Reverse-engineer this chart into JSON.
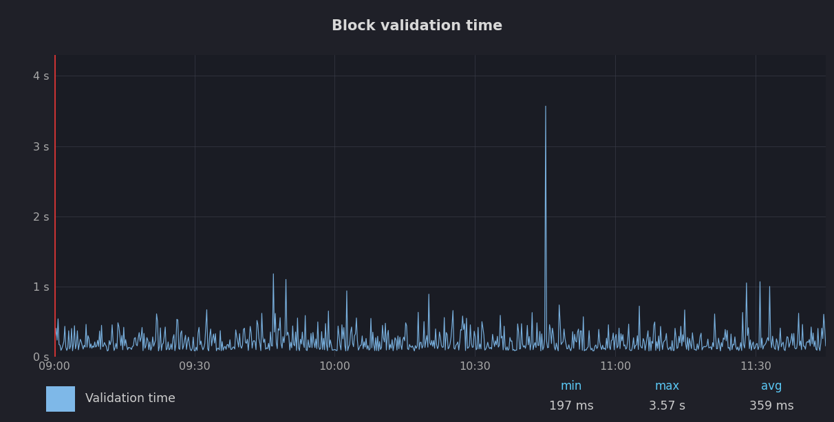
{
  "title": "Block validation time",
  "background_color": "#1f2028",
  "plot_bg_color": "#1a1c24",
  "grid_color": "#3a3d4a",
  "line_color": "#7eb8e8",
  "red_line_color": "#cc3333",
  "title_color": "#d8d8d8",
  "tick_color": "#aaaaaa",
  "legend_label": "Validation time",
  "legend_label_color": "#cccccc",
  "stat_label_color": "#5bc8f5",
  "stat_value_color": "#cccccc",
  "min_label": "min",
  "max_label": "max",
  "avg_label": "avg",
  "min_value": "197 ms",
  "max_value": "3.57 s",
  "avg_value": "359 ms",
  "x_ticks": [
    "09:00",
    "09:30",
    "10:00",
    "10:30",
    "11:00",
    "11:30"
  ],
  "x_tick_positions": [
    0,
    30,
    60,
    90,
    120,
    150
  ],
  "y_ticks": [
    0,
    1,
    2,
    3,
    4
  ],
  "y_tick_labels": [
    "0 s",
    "1 s",
    "2 s",
    "3 s",
    "4 s"
  ],
  "ylim": [
    0,
    4.3
  ],
  "xlim": [
    0,
    165
  ]
}
